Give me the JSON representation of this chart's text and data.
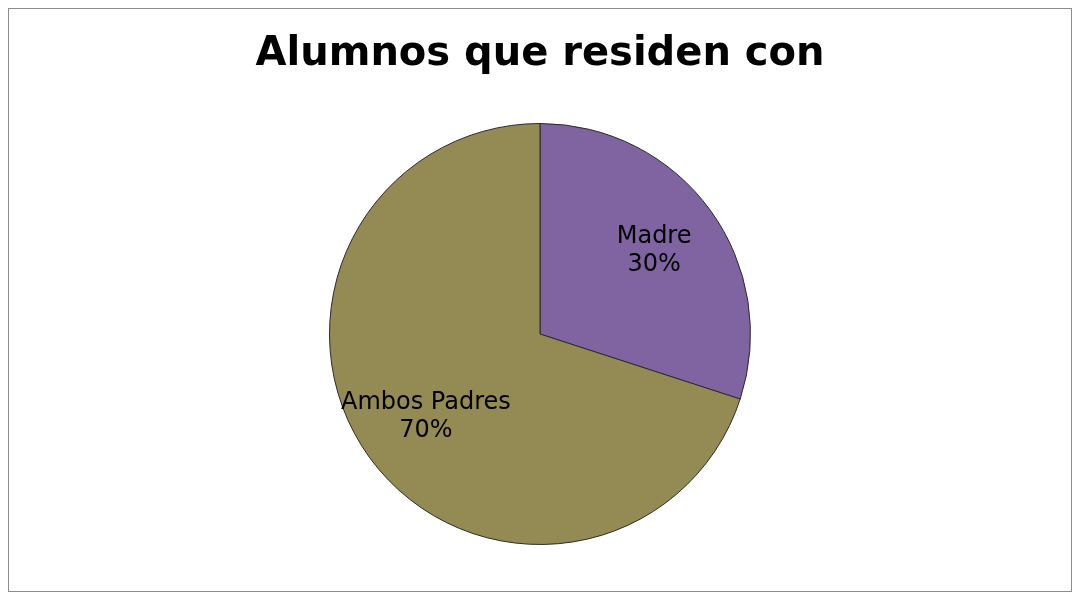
{
  "chart_data": {
    "type": "pie",
    "title": "Alumnos que residen con",
    "categories": [
      "Madre",
      "Ambos Padres"
    ],
    "values": [
      30,
      70
    ],
    "value_labels": [
      "30%",
      "70%"
    ],
    "colors": [
      "#8064a2",
      "#948a54"
    ],
    "legend": false
  }
}
